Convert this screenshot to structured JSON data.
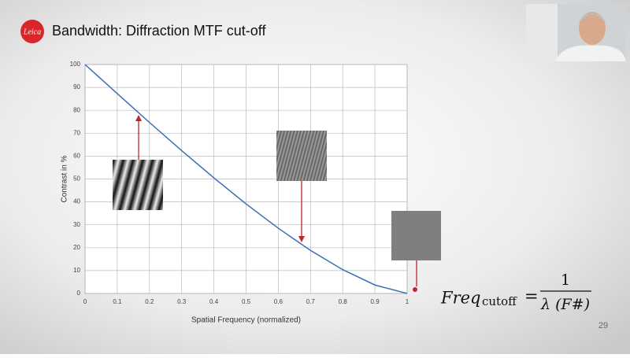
{
  "slide": {
    "title": "Bandwidth: Diffraction MTF cut-off",
    "logo": "Leica",
    "page_number": "29",
    "formula": {
      "lhs": "Freq",
      "subscript": "cutoff",
      "equals": "=",
      "numerator": "1",
      "denominator": "λ (F#)"
    }
  },
  "chart_data": {
    "type": "line",
    "x": [
      0,
      0.1,
      0.2,
      0.3,
      0.4,
      0.5,
      0.6,
      0.7,
      0.8,
      0.9,
      1
    ],
    "series": [
      {
        "color": "#3d6db5",
        "values": [
          100,
          87.3,
          74.7,
          62.4,
          50.5,
          39.1,
          28.5,
          18.8,
          10.4,
          3.7,
          0
        ]
      }
    ],
    "xlabel": "Spatial Frequency (normalized)",
    "ylabel": "Contrast in %",
    "xlim": [
      0,
      1
    ],
    "ylim": [
      0,
      100
    ],
    "xticks": [
      0,
      0.1,
      0.2,
      0.3,
      0.4,
      0.5,
      0.6,
      0.7,
      0.8,
      0.9,
      1
    ],
    "yticks": [
      0,
      10,
      20,
      30,
      40,
      50,
      60,
      70,
      80,
      90,
      100
    ],
    "grid": true
  }
}
